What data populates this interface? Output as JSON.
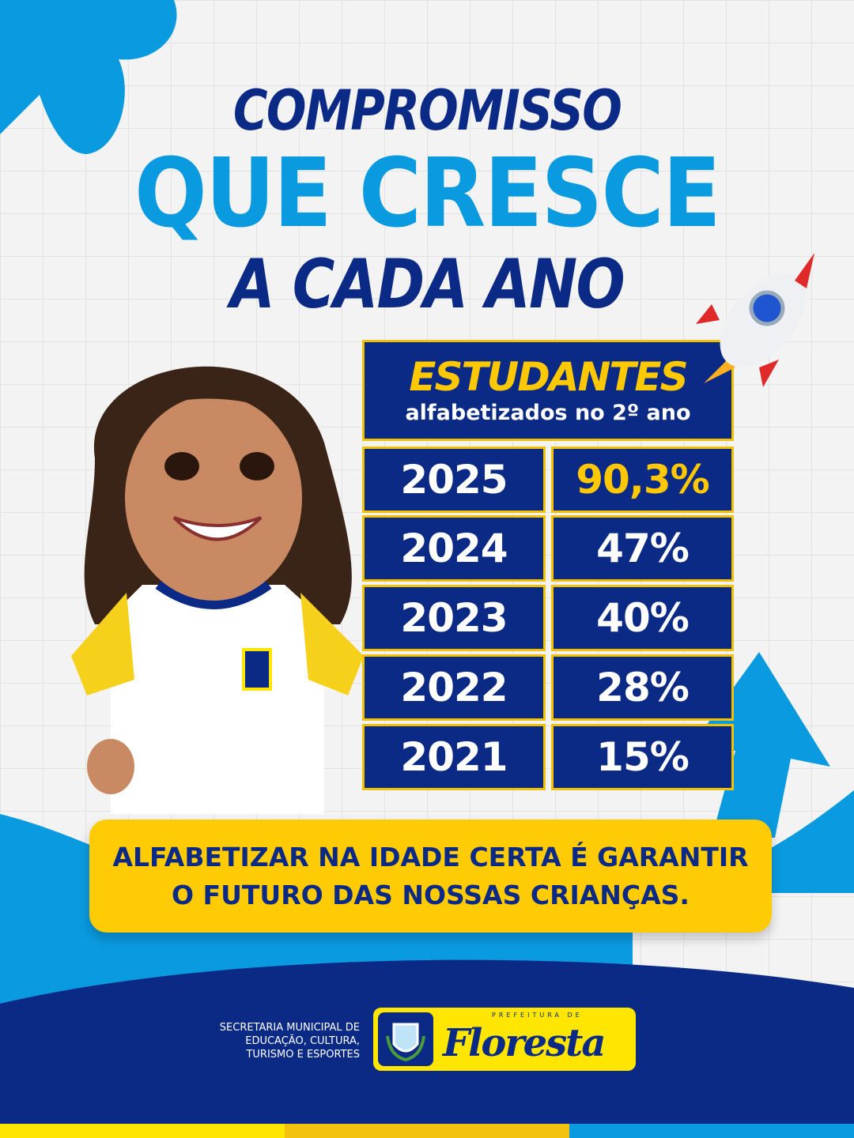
{
  "title": {
    "line1": "COMPROMISSO",
    "line2": "QUE CRESCE",
    "line3": "A CADA ANO"
  },
  "table": {
    "header": "ESTUDANTES",
    "subheader": "alfabetizados no 2º ano",
    "rows": [
      {
        "year": "2025",
        "value": "90,3%"
      },
      {
        "year": "2024",
        "value": "47%"
      },
      {
        "year": "2023",
        "value": "40%"
      },
      {
        "year": "2022",
        "value": "28%"
      },
      {
        "year": "2021",
        "value": "15%"
      }
    ]
  },
  "banner": {
    "line1": "ALFABETIZAR NA IDADE CERTA É GARANTIR",
    "line2": "O FUTURO DAS NOSSAS CRIANÇAS."
  },
  "footer": {
    "secretaria": [
      "SECRETARIA MUNICIPAL DE",
      "EDUCAÇÃO, CULTURA,",
      "TURISMO E ESPORTES"
    ],
    "logo_small": "PREFEITURA DE",
    "logo_name": "Floresta"
  },
  "colors": {
    "navy": "#0b2a86",
    "blue": "#0a9ae0",
    "yellow": "#ffc800"
  }
}
